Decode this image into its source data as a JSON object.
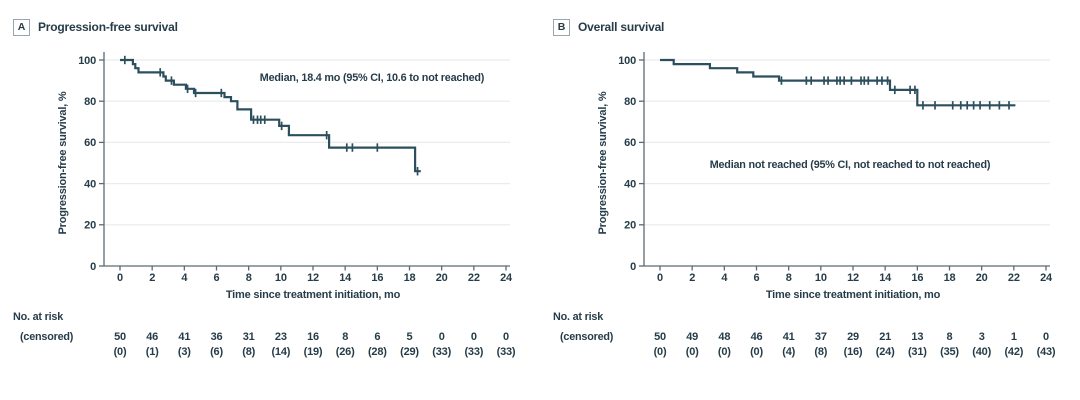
{
  "figure": {
    "risk_label_line1": "No. at risk",
    "risk_label_line2": "(censored)"
  },
  "colors": {
    "background": "#ffffff",
    "ink": "#263c49",
    "curve": "#2c4f5e",
    "axis": "#5c6a72",
    "grid": "#e9ebec",
    "panel_box_border": "#9aa6ad"
  },
  "chart_data": [
    {
      "type": "line",
      "subtype": "kaplan-meier-step",
      "panel_label": "A",
      "title": "Progression-free survival",
      "ylabel": "Progression-free survival, %",
      "xlabel": "Time since treatment initiation, mo",
      "annotation": "Median, 18.4 mo (95% CI, 10.6 to not reached)",
      "annotation_xy": [
        372,
        41
      ],
      "xlim": [
        0,
        24
      ],
      "ylim": [
        0,
        100
      ],
      "x_ticks": [
        0,
        2,
        4,
        6,
        8,
        10,
        12,
        14,
        16,
        18,
        20,
        22,
        24
      ],
      "y_ticks": [
        0,
        20,
        40,
        60,
        80,
        100
      ],
      "grid": "horizontal",
      "legend": "none",
      "km_steps": [
        [
          0,
          100
        ],
        [
          0.8,
          100
        ],
        [
          0.8,
          98
        ],
        [
          0.95,
          98
        ],
        [
          0.95,
          96
        ],
        [
          1.15,
          96
        ],
        [
          1.15,
          94
        ],
        [
          2.7,
          94
        ],
        [
          2.7,
          92
        ],
        [
          2.85,
          92
        ],
        [
          2.85,
          90
        ],
        [
          3.35,
          90
        ],
        [
          3.35,
          88
        ],
        [
          4.1,
          88
        ],
        [
          4.1,
          86
        ],
        [
          4.6,
          86
        ],
        [
          4.6,
          84
        ],
        [
          6.5,
          84
        ],
        [
          6.5,
          82
        ],
        [
          6.9,
          82
        ],
        [
          6.9,
          80
        ],
        [
          7.3,
          80
        ],
        [
          7.3,
          76
        ],
        [
          8.15,
          76
        ],
        [
          8.15,
          71
        ],
        [
          9.9,
          71
        ],
        [
          9.9,
          68
        ],
        [
          10.5,
          68
        ],
        [
          10.5,
          63.5
        ],
        [
          13.0,
          63.5
        ],
        [
          13.0,
          57.5
        ],
        [
          18.35,
          57.5
        ],
        [
          18.35,
          46
        ],
        [
          18.7,
          46
        ]
      ],
      "censor_marks": [
        [
          0.3,
          100
        ],
        [
          2.5,
          94
        ],
        [
          3.2,
          90
        ],
        [
          4.2,
          86
        ],
        [
          4.7,
          84
        ],
        [
          6.3,
          84
        ],
        [
          8.3,
          71
        ],
        [
          8.55,
          71
        ],
        [
          8.75,
          71
        ],
        [
          9.0,
          71
        ],
        [
          10.05,
          68
        ],
        [
          12.85,
          63.5
        ],
        [
          14.1,
          57.5
        ],
        [
          14.45,
          57.5
        ],
        [
          16.0,
          57.5
        ],
        [
          18.5,
          46
        ]
      ],
      "risk_months": [
        0,
        2,
        4,
        6,
        8,
        10,
        12,
        14,
        16,
        18,
        20,
        22,
        24
      ],
      "at_risk": [
        "50",
        "46",
        "41",
        "36",
        "31",
        "23",
        "16",
        "8",
        "6",
        "5",
        "0",
        "0",
        "0"
      ],
      "censored_counts": [
        "(0)",
        "(1)",
        "(3)",
        "(6)",
        "(8)",
        "(14)",
        "(19)",
        "(26)",
        "(28)",
        "(29)",
        "(33)",
        "(33)",
        "(33)"
      ]
    },
    {
      "type": "line",
      "subtype": "kaplan-meier-step",
      "panel_label": "B",
      "title": "Overall survival",
      "ylabel": "Progression-free survival, %",
      "xlabel": "Time since treatment initiation, mo",
      "annotation": "Median not reached (95% CI, not reached to not reached)",
      "annotation_xy": [
        310,
        128
      ],
      "xlim": [
        0,
        24
      ],
      "ylim": [
        0,
        100
      ],
      "x_ticks": [
        0,
        2,
        4,
        6,
        8,
        10,
        12,
        14,
        16,
        18,
        20,
        22,
        24
      ],
      "y_ticks": [
        0,
        20,
        40,
        60,
        80,
        100
      ],
      "grid": "horizontal",
      "legend": "none",
      "km_steps": [
        [
          0,
          100
        ],
        [
          0.85,
          100
        ],
        [
          0.85,
          98
        ],
        [
          3.1,
          98
        ],
        [
          3.1,
          96
        ],
        [
          4.8,
          96
        ],
        [
          4.8,
          94
        ],
        [
          5.8,
          94
        ],
        [
          5.8,
          92
        ],
        [
          7.4,
          92
        ],
        [
          7.4,
          90
        ],
        [
          14.3,
          90
        ],
        [
          14.3,
          85.5
        ],
        [
          16.0,
          85.5
        ],
        [
          16.0,
          78
        ],
        [
          22.1,
          78
        ]
      ],
      "censor_marks": [
        [
          7.55,
          90
        ],
        [
          9.1,
          90
        ],
        [
          9.4,
          90
        ],
        [
          10.2,
          90
        ],
        [
          10.45,
          90
        ],
        [
          11.0,
          90
        ],
        [
          11.2,
          90
        ],
        [
          11.45,
          90
        ],
        [
          11.9,
          90
        ],
        [
          12.5,
          90
        ],
        [
          12.7,
          90
        ],
        [
          12.95,
          90
        ],
        [
          13.5,
          90
        ],
        [
          13.8,
          90
        ],
        [
          14.15,
          90
        ],
        [
          14.6,
          85.5
        ],
        [
          15.55,
          85.5
        ],
        [
          15.85,
          85.5
        ],
        [
          16.35,
          78
        ],
        [
          17.1,
          78
        ],
        [
          18.2,
          78
        ],
        [
          18.7,
          78
        ],
        [
          19.1,
          78
        ],
        [
          19.5,
          78
        ],
        [
          19.9,
          78
        ],
        [
          20.5,
          78
        ],
        [
          21.1,
          78
        ],
        [
          21.7,
          78
        ]
      ],
      "risk_months": [
        0,
        2,
        4,
        6,
        8,
        10,
        12,
        14,
        16,
        18,
        20,
        22,
        24
      ],
      "at_risk": [
        "50",
        "49",
        "48",
        "46",
        "41",
        "37",
        "29",
        "21",
        "13",
        "8",
        "3",
        "1",
        "0"
      ],
      "censored_counts": [
        "(0)",
        "(0)",
        "(0)",
        "(0)",
        "(4)",
        "(8)",
        "(16)",
        "(24)",
        "(31)",
        "(35)",
        "(40)",
        "(42)",
        "(43)"
      ]
    }
  ]
}
